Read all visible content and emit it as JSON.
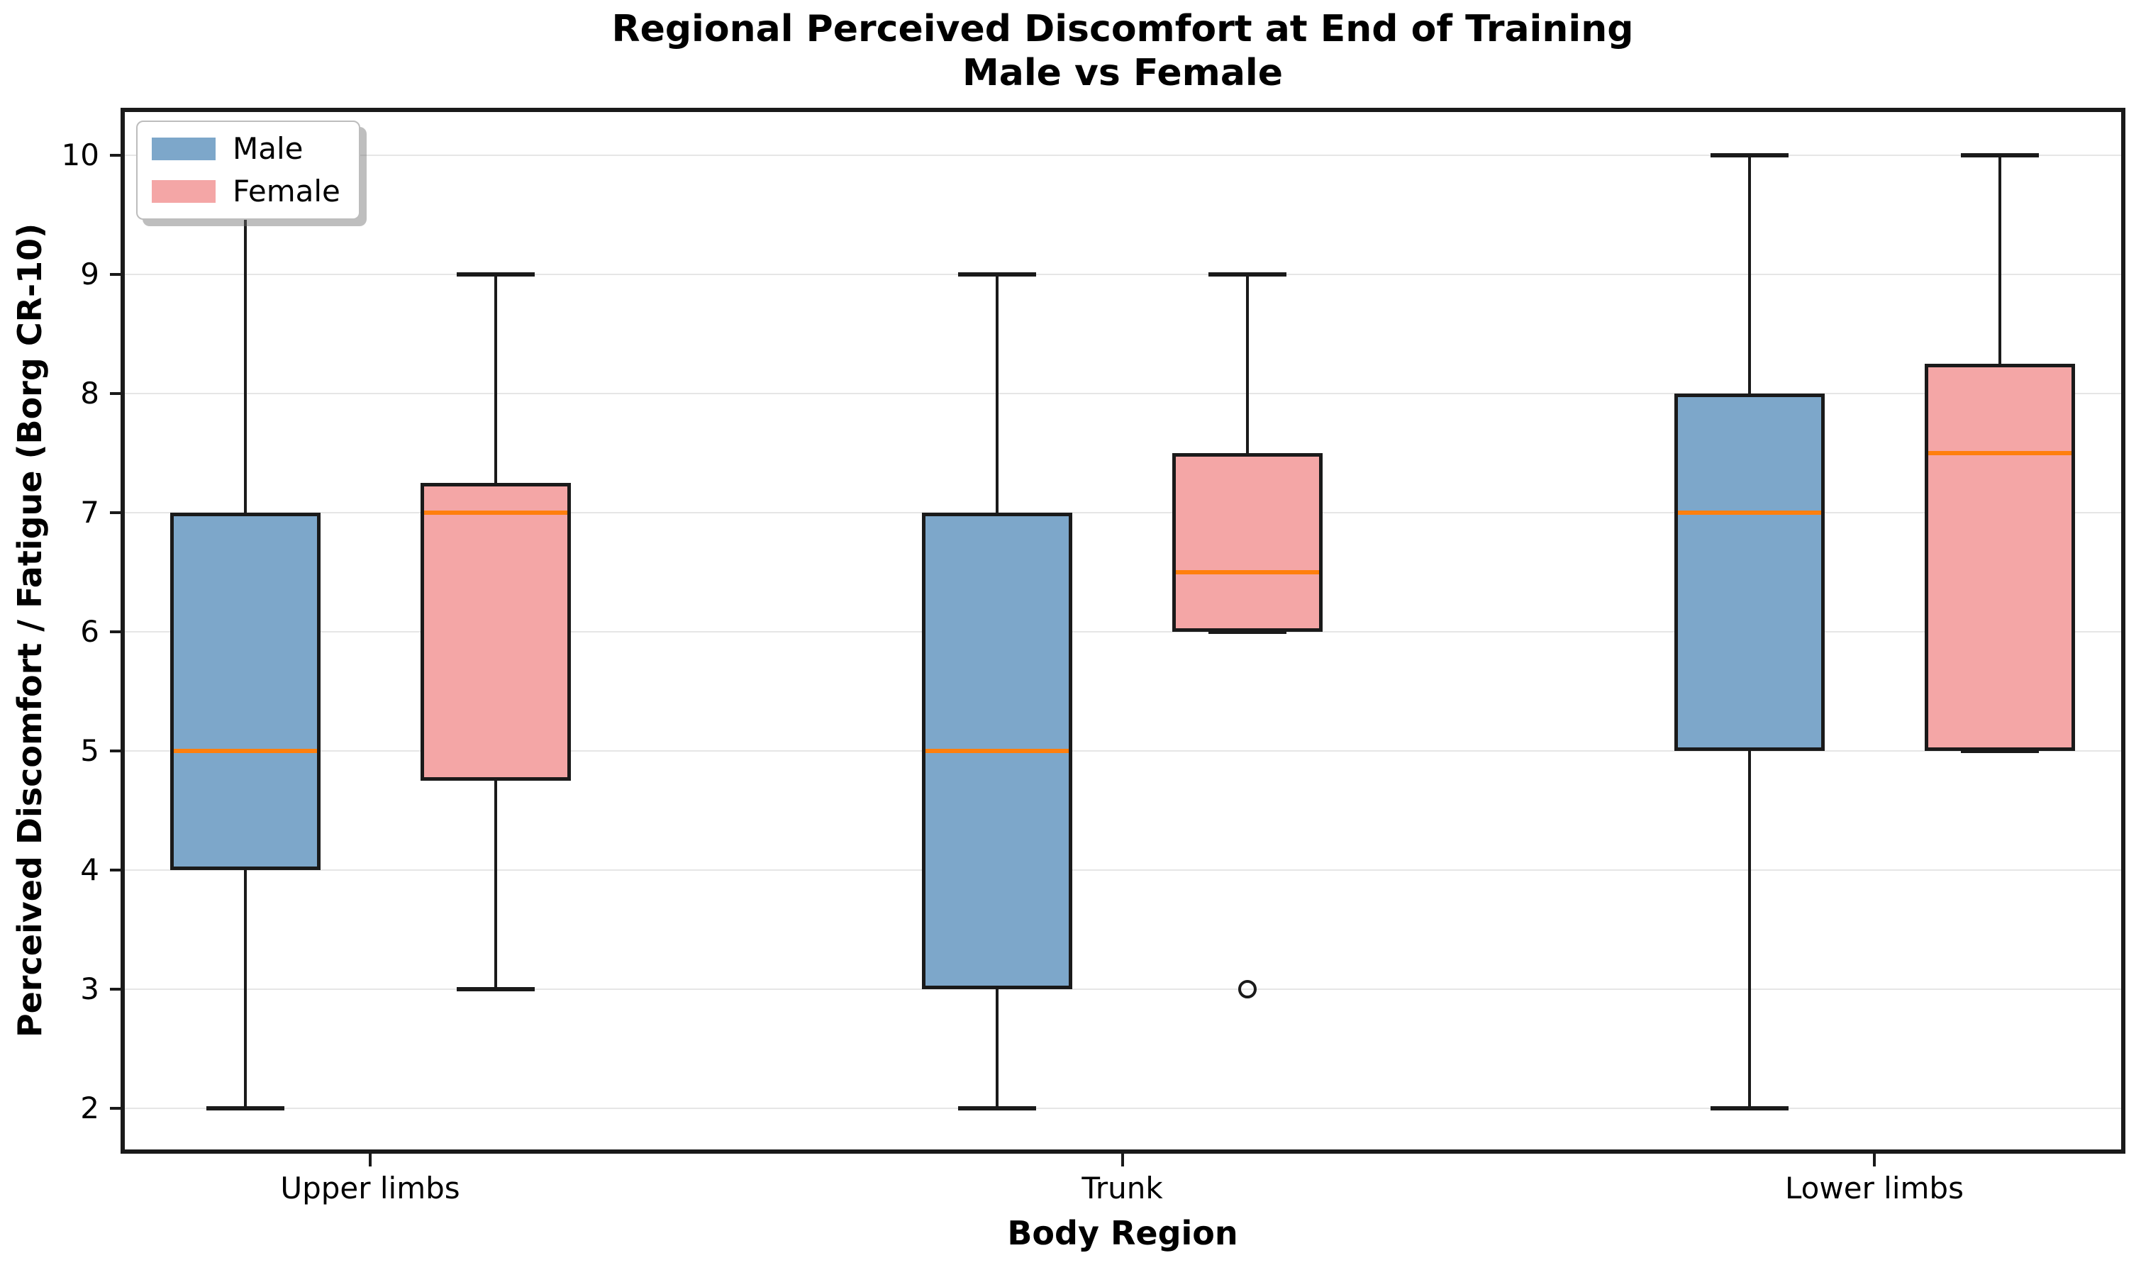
{
  "chart_data": {
    "type": "boxplot",
    "title_line1": "Regional Perceived Discomfort at End of Training",
    "title_line2": "Male vs Female",
    "xlabel": "Body Region",
    "ylabel": "Perceived Discomfort / Fatigue (Borg CR-10)",
    "categories": [
      "Upper limbs",
      "Trunk",
      "Lower limbs"
    ],
    "y_ticks": [
      2,
      3,
      4,
      5,
      6,
      7,
      8,
      9,
      10
    ],
    "y_axis_range": [
      1.62,
      10.4
    ],
    "grid": "horizontal",
    "legend_position": "upper-left",
    "median_color": "#ff7f0e",
    "box_edge_color": "#1a1a1a",
    "legend": [
      {
        "label": "Male",
        "color": "#7da7ca"
      },
      {
        "label": "Female",
        "color": "#f4a6a6"
      }
    ],
    "series": [
      {
        "name": "Male",
        "color": "#7da7ca",
        "boxes": [
          {
            "category": "Upper limbs",
            "whisker_low": 2,
            "q1": 4,
            "median": 5,
            "q3": 7,
            "whisker_high": 10,
            "outliers": []
          },
          {
            "category": "Trunk",
            "whisker_low": 2,
            "q1": 3,
            "median": 5,
            "q3": 7,
            "whisker_high": 9,
            "outliers": []
          },
          {
            "category": "Lower limbs",
            "whisker_low": 2,
            "q1": 5,
            "median": 7,
            "q3": 8,
            "whisker_high": 10,
            "outliers": []
          }
        ]
      },
      {
        "name": "Female",
        "color": "#f4a6a6",
        "boxes": [
          {
            "category": "Upper limbs",
            "whisker_low": 3,
            "q1": 4.75,
            "median": 7,
            "q3": 7.25,
            "whisker_high": 9,
            "outliers": []
          },
          {
            "category": "Trunk",
            "whisker_low": 6,
            "q1": 6,
            "median": 6.5,
            "q3": 7.5,
            "whisker_high": 9,
            "outliers": [
              3
            ]
          },
          {
            "category": "Lower limbs",
            "whisker_low": 5,
            "q1": 5,
            "median": 7.5,
            "q3": 8.25,
            "whisker_high": 10,
            "outliers": []
          }
        ]
      }
    ]
  }
}
